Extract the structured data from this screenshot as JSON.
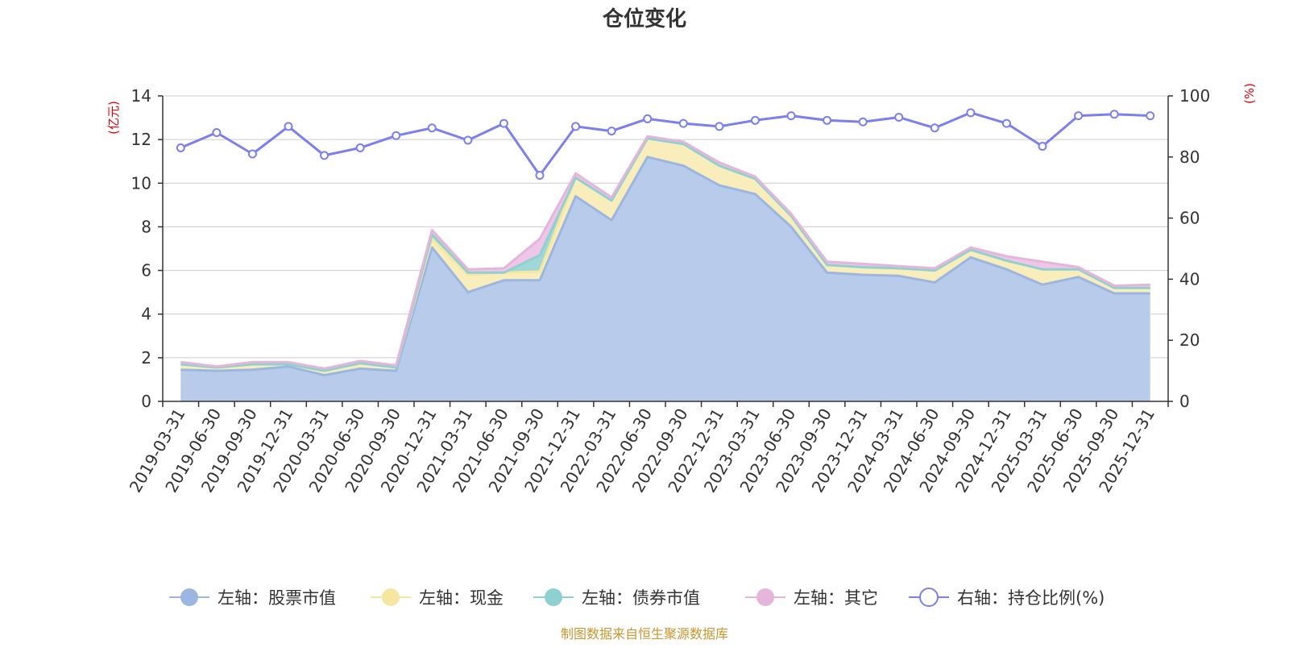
{
  "chart_data": {
    "type": "area",
    "title": "仓位变化",
    "left_axis_unit": "(亿元)",
    "right_axis_unit": "(%)",
    "ylim_left": [
      0,
      14
    ],
    "ylim_right": [
      0,
      100
    ],
    "yticks_left": [
      "0",
      "2",
      "4",
      "6",
      "8",
      "10",
      "12",
      "14"
    ],
    "yticks_right": [
      "0",
      "20",
      "40",
      "60",
      "80",
      "100"
    ],
    "categories": [
      "2019-03-31",
      "2019-06-30",
      "2019-09-30",
      "2019-12-31",
      "2020-03-31",
      "2020-06-30",
      "2020-09-30",
      "2020-12-31",
      "2021-03-31",
      "2021-06-30",
      "2021-09-30",
      "2021-12-31",
      "2022-03-31",
      "2022-06-30",
      "2022-09-30",
      "2022-12-31",
      "2023-03-31",
      "2023-06-30",
      "2023-09-30",
      "2023-12-31",
      "2024-03-31",
      "2024-06-30",
      "2024-09-30",
      "2024-12-31",
      "2025-03-31",
      "2025-06-30",
      "2025-09-30",
      "2025-12-31"
    ],
    "series": [
      {
        "name": "左轴：股票市值",
        "axis": "left",
        "stack": true,
        "color": "#9bb6e0",
        "fill": "#b8cbea",
        "values": [
          1.45,
          1.4,
          1.45,
          1.6,
          1.2,
          1.5,
          1.4,
          7.05,
          5.0,
          5.55,
          5.55,
          9.4,
          8.3,
          11.2,
          10.8,
          9.9,
          9.5,
          8.0,
          5.9,
          5.8,
          5.75,
          5.45,
          6.6,
          6.05,
          5.35,
          5.7,
          4.95,
          4.95
        ]
      },
      {
        "name": "左轴：现金",
        "axis": "left",
        "stack": true,
        "color": "#f5e6a0",
        "fill": "#f8edbb",
        "values": [
          0.25,
          0.15,
          0.25,
          0.1,
          0.2,
          0.25,
          0.15,
          0.4,
          0.8,
          0.35,
          0.4,
          0.85,
          0.9,
          0.85,
          1.0,
          0.9,
          0.7,
          0.5,
          0.35,
          0.35,
          0.35,
          0.55,
          0.35,
          0.4,
          0.7,
          0.35,
          0.25,
          0.25
        ]
      },
      {
        "name": "左轴：债券市值",
        "axis": "left",
        "stack": true,
        "color": "#8fd1d1",
        "fill": "#9fd8d6",
        "values": [
          0,
          0,
          0,
          0,
          0,
          0,
          0,
          0.2,
          0.1,
          0,
          0.75,
          0,
          0,
          0,
          0,
          0,
          0,
          0,
          0,
          0,
          0,
          0,
          0,
          0,
          0,
          0,
          0,
          0
        ]
      },
      {
        "name": "左轴：其它",
        "axis": "left",
        "stack": true,
        "color": "#e5b5dc",
        "fill": "#efc6e7",
        "values": [
          0.1,
          0.05,
          0.1,
          0.1,
          0.1,
          0.1,
          0.1,
          0.2,
          0.15,
          0.2,
          0.75,
          0.2,
          0.15,
          0.1,
          0.1,
          0.15,
          0.1,
          0.1,
          0.15,
          0.15,
          0.1,
          0.1,
          0.1,
          0.2,
          0.35,
          0.1,
          0.1,
          0.15
        ]
      },
      {
        "name": "右轴：持仓比例(%)",
        "axis": "right",
        "stack": false,
        "color": "#7b7ff0",
        "values": [
          83,
          88,
          81,
          90,
          80.5,
          83,
          87,
          89.5,
          85.5,
          91,
          74,
          90,
          88.5,
          92.5,
          91,
          90,
          92,
          93.5,
          92,
          91.5,
          93,
          89.5,
          94.5,
          91,
          83.5,
          93.5,
          94,
          93.5
        ]
      }
    ],
    "legend_position": "bottom",
    "grid": true
  },
  "source_text": "制图数据来自恒生聚源数据库"
}
